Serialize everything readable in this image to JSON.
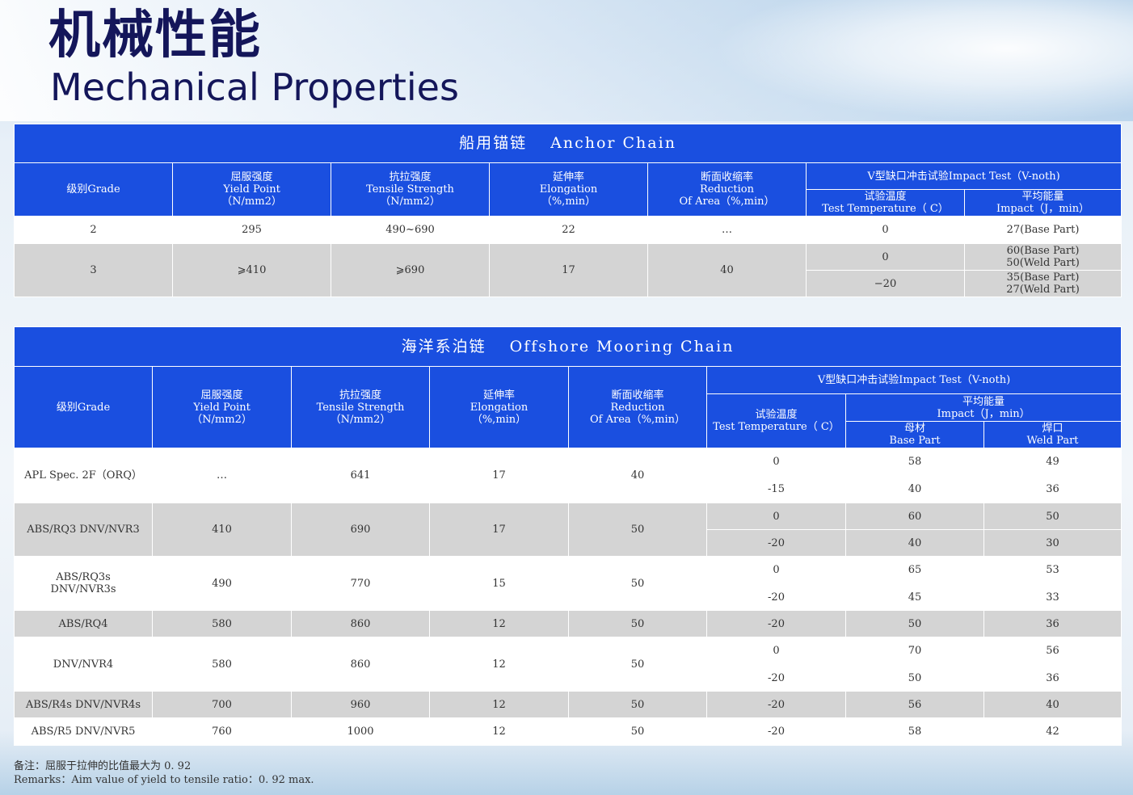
{
  "title_cn": "机械性能",
  "title_en": "Mechanical Properties",
  "anchor": {
    "title": "船用锚链　 Anchor Chain",
    "headers": {
      "grade": "级别Grade",
      "yield": [
        "屈服强度",
        "Yield Point",
        "（N/mm2）"
      ],
      "tensile": [
        "抗拉强度",
        "Tensile Strength",
        "（N/mm2）"
      ],
      "elong": [
        "延伸率",
        "Elongation",
        "（%,min）"
      ],
      "reduction": [
        "断面收缩率",
        "Reduction",
        "Of Area（%,min）"
      ],
      "impact": "V型缺口冲击试验Impact Test（V-noth)",
      "temp": [
        "试验温度",
        "Test Temperature（ C）"
      ],
      "energy": [
        "平均能量",
        "Impact（J，min）"
      ]
    },
    "rows": [
      {
        "grade": "2",
        "yield": "295",
        "tensile": "490~690",
        "elong": "22",
        "reduction": "…",
        "temp": "0",
        "energy": "27(Base Part)"
      },
      {
        "grade": "3",
        "yield": "⩾410",
        "tensile": "⩾690",
        "elong": "17",
        "reduction": "40",
        "temp1": "0",
        "temp2": "−20",
        "energy1": [
          "60(Base Part)",
          "50(Weld Part)"
        ],
        "energy2": [
          "35(Base Part)",
          "27(Weld Part)"
        ]
      }
    ]
  },
  "offshore": {
    "title": "海洋系泊链　 Offshore Mooring Chain",
    "headers": {
      "grade": "级别Grade",
      "yield": [
        "屈服强度",
        "Yield Point",
        "（N/mm2）"
      ],
      "tensile": [
        "抗拉强度",
        "Tensile Strength",
        "（N/mm2）"
      ],
      "elong": [
        "延伸率",
        "Elongation",
        "（%,min）"
      ],
      "reduction": [
        "断面收缩率",
        "Reduction",
        "Of Area（%,min）"
      ],
      "impact": "V型缺口冲击试验Impact Test（V-noth)",
      "temp": [
        "试验温度",
        "Test Temperature（ C）"
      ],
      "energy": [
        "平均能量",
        "Impact（J，min）"
      ],
      "base": [
        "母材",
        "Base Part"
      ],
      "weld": [
        "焊口",
        "Weld Part"
      ]
    },
    "rows": [
      {
        "grade": "APL Spec. 2F（ORQ）",
        "yield": "…",
        "tensile": "641",
        "elong": "17",
        "reduction": "40",
        "temp1": "0",
        "temp2": "-15",
        "base1": "58",
        "base2": "40",
        "weld1": "49",
        "weld2": "36"
      },
      {
        "grade": "ABS/RQ3 DNV/NVR3",
        "yield": "410",
        "tensile": "690",
        "elong": "17",
        "reduction": "50",
        "temp1": "0",
        "temp2": "-20",
        "base1": "60",
        "base2": "40",
        "weld1": "50",
        "weld2": "30"
      },
      {
        "grade": [
          "ABS/RQ3s",
          "DNV/NVR3s"
        ],
        "yield": "490",
        "tensile": "770",
        "elong": "15",
        "reduction": "50",
        "temp1": "0",
        "temp2": "-20",
        "base1": "65",
        "base2": "45",
        "weld1": "53",
        "weld2": "33"
      },
      {
        "grade": "ABS/RQ4",
        "yield": "580",
        "tensile": "860",
        "elong": "12",
        "reduction": "50",
        "temp": "-20",
        "base": "50",
        "weld": "36"
      },
      {
        "grade": "DNV/NVR4",
        "yield": "580",
        "tensile": "860",
        "elong": "12",
        "reduction": "50",
        "temp1": "0",
        "temp2": "-20",
        "base1": "70",
        "base2": "50",
        "weld1": "56",
        "weld2": "36"
      },
      {
        "grade": "ABS/R4s DNV/NVR4s",
        "yield": "700",
        "tensile": "960",
        "elong": "12",
        "reduction": "50",
        "temp": "-20",
        "base": "56",
        "weld": "40"
      },
      {
        "grade": "ABS/R5 DNV/NVR5",
        "yield": "760",
        "tensile": "1000",
        "elong": "12",
        "reduction": "50",
        "temp": "-20",
        "base": "58",
        "weld": "42"
      }
    ]
  },
  "remarks": {
    "cn": "备注：屈服于拉伸的比值最大为 0. 92",
    "en": "Remarks：Aim value of yield to tensile ratio：0. 92 max."
  }
}
